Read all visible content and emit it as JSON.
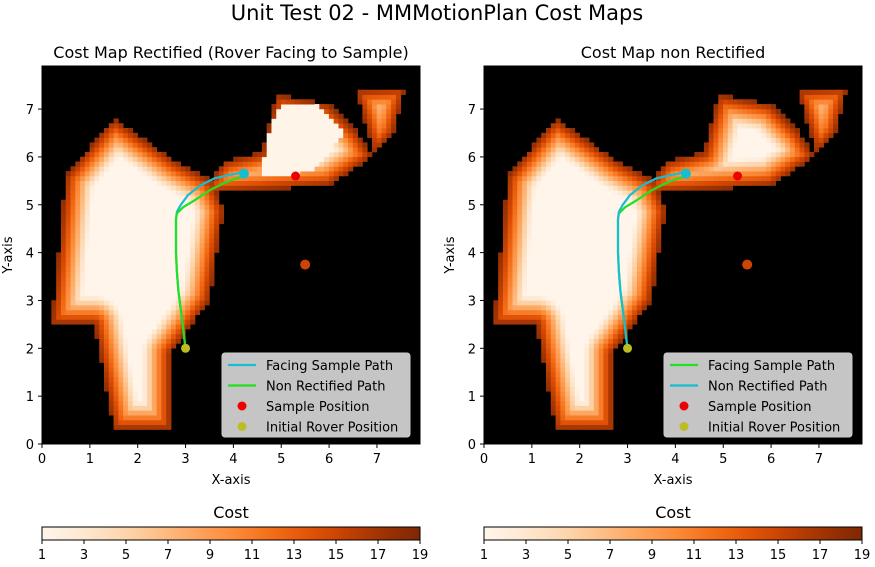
{
  "figure_title": "Unit Test 02 - MMMotionPlan Cost Maps",
  "colors": {
    "facing_path": "#17becf",
    "non_rectified_path": "#22e022",
    "sample_marker": "#ee0000",
    "rover_marker": "#bcbd22",
    "obstacle": "#000000"
  },
  "colorbar": {
    "label": "Cost",
    "ticks": [
      "1",
      "3",
      "5",
      "7",
      "9",
      "11",
      "13",
      "15",
      "17",
      "19"
    ],
    "range": [
      1,
      19
    ],
    "colormap": "Oranges"
  },
  "chart_data": [
    {
      "type": "heatmap",
      "title": "Cost Map Rectified (Rover Facing to Sample)",
      "xlabel": "X-axis",
      "ylabel": "Y-axis",
      "xlim": [
        0,
        7.9
      ],
      "ylim": [
        0,
        7.9
      ],
      "xticks": [
        "0",
        "1",
        "2",
        "3",
        "4",
        "5",
        "6",
        "7"
      ],
      "yticks": [
        "0",
        "1",
        "2",
        "3",
        "4",
        "5",
        "6",
        "7"
      ],
      "legend": {
        "position": "bottom-right",
        "entries": [
          "Facing Sample Path",
          "Non Rectified Path",
          "Sample Position",
          "Initial Rover Position"
        ]
      },
      "series": [
        {
          "name": "Facing Sample Path",
          "color_key": "facing_path",
          "kind": "line",
          "x": [
            3.0,
            2.95,
            2.9,
            2.85,
            2.82,
            2.8,
            2.8,
            2.8,
            2.82,
            2.9,
            3.05,
            3.3,
            3.6,
            3.9,
            4.1,
            4.2
          ],
          "y": [
            2.0,
            2.4,
            2.8,
            3.2,
            3.6,
            4.0,
            4.4,
            4.7,
            4.85,
            5.0,
            5.2,
            5.4,
            5.55,
            5.62,
            5.66,
            5.68
          ]
        },
        {
          "name": "Non Rectified Path",
          "color_key": "non_rectified_path",
          "kind": "line",
          "x": [
            3.0,
            2.95,
            2.9,
            2.85,
            2.82,
            2.8,
            2.8,
            2.8,
            2.82,
            2.95,
            3.2,
            3.5,
            3.8,
            4.05,
            4.25
          ],
          "y": [
            2.0,
            2.4,
            2.8,
            3.2,
            3.6,
            4.0,
            4.4,
            4.7,
            4.82,
            4.95,
            5.1,
            5.3,
            5.45,
            5.55,
            5.6
          ]
        },
        {
          "name": "Sample Position",
          "color_key": "sample_marker",
          "kind": "point",
          "x": [
            5.3
          ],
          "y": [
            5.6
          ]
        },
        {
          "name": "Initial Rover Position",
          "color_key": "rover_marker",
          "kind": "point",
          "x": [
            3.0
          ],
          "y": [
            2.0
          ]
        }
      ],
      "endpoint": {
        "x": 4.22,
        "y": 5.65,
        "color_key": "facing_path"
      },
      "cost_field": {
        "free_regions": [
          [
            [
              0.2,
              2.5
            ],
            [
              0.5,
              5.6
            ],
            [
              1.5,
              6.8
            ],
            [
              2.8,
              5.9
            ],
            [
              3.55,
              5.5
            ],
            [
              3.8,
              4.9
            ],
            [
              3.5,
              3.0
            ],
            [
              2.7,
              1.9
            ],
            [
              2.7,
              0.3
            ],
            [
              1.5,
              0.3
            ],
            [
              1.1,
              2.5
            ]
          ],
          [
            [
              3.35,
              5.25
            ],
            [
              3.8,
              5.9
            ],
            [
              4.6,
              6.1
            ],
            [
              4.9,
              7.3
            ],
            [
              6.0,
              7.1
            ],
            [
              6.6,
              6.5
            ],
            [
              6.9,
              6.0
            ],
            [
              6.0,
              5.4
            ],
            [
              5.2,
              5.35
            ],
            [
              4.4,
              5.3
            ]
          ],
          [
            [
              6.55,
              7.4
            ],
            [
              7.6,
              7.45
            ],
            [
              7.35,
              6.5
            ],
            [
              6.95,
              6.05
            ]
          ]
        ],
        "flat_region": [
          [
            4.6,
            5.6
          ],
          [
            4.7,
            6.4
          ],
          [
            5.0,
            7.1
          ],
          [
            5.8,
            7.1
          ],
          [
            6.3,
            6.5
          ],
          [
            5.8,
            5.8
          ],
          [
            5.3,
            5.6
          ]
        ],
        "blobs": [
          {
            "x": 5.5,
            "y": 3.75,
            "cost": 15
          }
        ]
      }
    },
    {
      "type": "heatmap",
      "title": "Cost Map non Rectified",
      "xlabel": "X-axis",
      "ylabel": "Y-axis",
      "xlim": [
        0,
        7.9
      ],
      "ylim": [
        0,
        7.9
      ],
      "xticks": [
        "0",
        "1",
        "2",
        "3",
        "4",
        "5",
        "6",
        "7"
      ],
      "yticks": [
        "0",
        "1",
        "2",
        "3",
        "4",
        "5",
        "6",
        "7"
      ],
      "legend": {
        "position": "bottom-right",
        "entries": [
          "Facing Sample Path",
          "Non Rectified Path",
          "Sample Position",
          "Initial Rover Position"
        ]
      },
      "series": [
        {
          "name": "Facing Sample Path",
          "color_key": "non_rectified_path",
          "kind": "line",
          "x": [
            3.0,
            2.95,
            2.9,
            2.85,
            2.82,
            2.8,
            2.8,
            2.8,
            2.82,
            2.95,
            3.2,
            3.5,
            3.8,
            4.05,
            4.25
          ],
          "y": [
            2.0,
            2.4,
            2.8,
            3.2,
            3.6,
            4.0,
            4.4,
            4.7,
            4.82,
            4.95,
            5.1,
            5.3,
            5.45,
            5.55,
            5.6
          ]
        },
        {
          "name": "Non Rectified Path",
          "color_key": "facing_path",
          "kind": "line",
          "x": [
            3.0,
            2.95,
            2.9,
            2.85,
            2.82,
            2.8,
            2.8,
            2.8,
            2.82,
            2.9,
            3.05,
            3.3,
            3.6,
            3.9,
            4.1,
            4.2
          ],
          "y": [
            2.0,
            2.4,
            2.8,
            3.2,
            3.6,
            4.0,
            4.4,
            4.7,
            4.85,
            5.0,
            5.2,
            5.4,
            5.55,
            5.62,
            5.66,
            5.68
          ]
        },
        {
          "name": "Sample Position",
          "color_key": "sample_marker",
          "kind": "point",
          "x": [
            5.3
          ],
          "y": [
            5.6
          ]
        },
        {
          "name": "Initial Rover Position",
          "color_key": "rover_marker",
          "kind": "point",
          "x": [
            3.0
          ],
          "y": [
            2.0
          ]
        }
      ],
      "endpoint": {
        "x": 4.22,
        "y": 5.65,
        "color_key": "facing_path"
      },
      "cost_field": {
        "free_regions": [
          [
            [
              0.2,
              2.5
            ],
            [
              0.5,
              5.6
            ],
            [
              1.5,
              6.8
            ],
            [
              2.8,
              5.9
            ],
            [
              3.55,
              5.5
            ],
            [
              3.8,
              4.9
            ],
            [
              3.5,
              3.0
            ],
            [
              2.7,
              1.9
            ],
            [
              2.7,
              0.3
            ],
            [
              1.5,
              0.3
            ],
            [
              1.1,
              2.5
            ]
          ],
          [
            [
              3.35,
              5.25
            ],
            [
              3.8,
              5.9
            ],
            [
              4.6,
              6.1
            ],
            [
              4.9,
              7.3
            ],
            [
              6.0,
              7.1
            ],
            [
              6.6,
              6.5
            ],
            [
              6.9,
              6.0
            ],
            [
              6.0,
              5.4
            ],
            [
              5.2,
              5.35
            ],
            [
              4.4,
              5.3
            ]
          ],
          [
            [
              6.55,
              7.4
            ],
            [
              7.6,
              7.45
            ],
            [
              7.35,
              6.5
            ],
            [
              6.95,
              6.05
            ]
          ]
        ],
        "flat_region": [],
        "blobs": [
          {
            "x": 5.5,
            "y": 3.75,
            "cost": 15
          }
        ]
      }
    }
  ]
}
